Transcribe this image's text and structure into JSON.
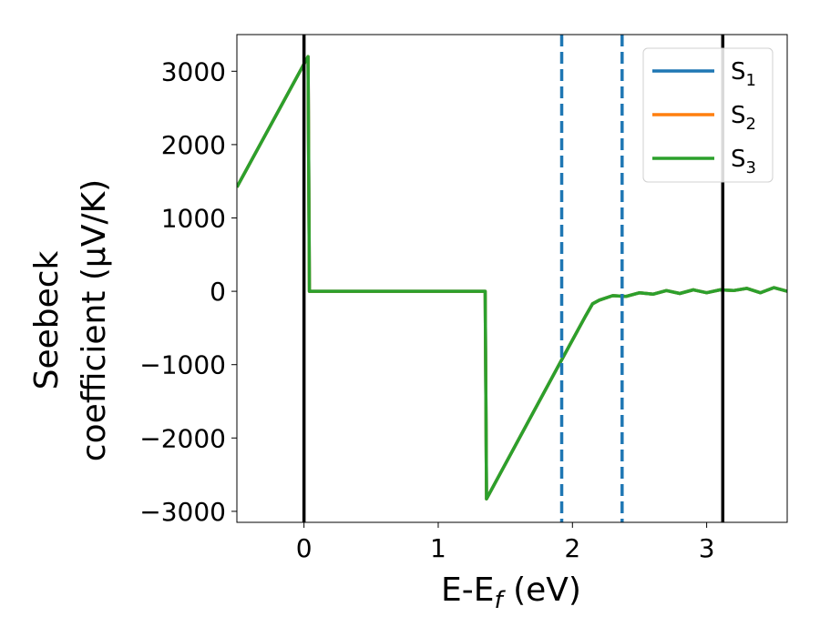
{
  "chart_data": {
    "type": "line",
    "xlabel": "E-E",
    "xlabel_sub": "f",
    "xlabel_unit": " (eV)",
    "ylabel_line1": "Seebeck",
    "ylabel_line2": "coefficient  (μV/K)",
    "xlim": [
      -0.5,
      3.6
    ],
    "ylim": [
      -3150,
      3500
    ],
    "xticks": [
      0,
      1,
      2,
      3
    ],
    "xtick_labels": [
      "0",
      "1",
      "2",
      "3"
    ],
    "yticks": [
      -3000,
      -2000,
      -1000,
      0,
      1000,
      2000,
      3000
    ],
    "ytick_labels": [
      "−3000",
      "−2000",
      "−1000",
      "0",
      "1000",
      "2000",
      "3000"
    ],
    "grid": false,
    "legend_position": "top-right",
    "series": [
      {
        "name": "S",
        "sub": "1",
        "color": "#1f77b4",
        "x": [
          -0.5,
          0.0,
          0.03,
          0.04,
          1.35,
          1.36,
          1.9,
          2.1,
          2.15,
          2.2,
          2.3,
          2.4,
          2.5,
          2.6,
          2.7,
          2.8,
          2.9,
          3.0,
          3.1,
          3.2,
          3.3,
          3.4,
          3.5,
          3.6
        ],
        "y": [
          1420,
          3100,
          3200,
          0,
          0,
          -2830,
          -1000,
          -330,
          -170,
          -120,
          -60,
          -70,
          -20,
          -40,
          10,
          -30,
          20,
          -20,
          20,
          10,
          40,
          -20,
          50,
          0
        ]
      },
      {
        "name": "S",
        "sub": "2",
        "color": "#ff7f0e",
        "x": [
          -0.5,
          0.0,
          0.03,
          0.04,
          1.35,
          1.36,
          1.9,
          2.1,
          2.15,
          2.2,
          2.3,
          2.4,
          2.5,
          2.6,
          2.7,
          2.8,
          2.9,
          3.0,
          3.1,
          3.2,
          3.3,
          3.4,
          3.5,
          3.6
        ],
        "y": [
          1420,
          3100,
          3200,
          0,
          0,
          -2830,
          -1000,
          -330,
          -170,
          -120,
          -60,
          -70,
          -20,
          -40,
          10,
          -30,
          20,
          -20,
          20,
          10,
          40,
          -20,
          50,
          0
        ]
      },
      {
        "name": "S",
        "sub": "3",
        "color": "#2ca02c",
        "x": [
          -0.5,
          0.0,
          0.03,
          0.04,
          1.35,
          1.36,
          1.9,
          2.1,
          2.15,
          2.2,
          2.3,
          2.4,
          2.5,
          2.6,
          2.7,
          2.8,
          2.9,
          3.0,
          3.1,
          3.2,
          3.3,
          3.4,
          3.5,
          3.6
        ],
        "y": [
          1420,
          3100,
          3200,
          0,
          0,
          -2830,
          -1000,
          -330,
          -170,
          -120,
          -60,
          -70,
          -20,
          -40,
          10,
          -30,
          20,
          -20,
          20,
          10,
          40,
          -20,
          50,
          0
        ]
      }
    ],
    "vlines_solid": [
      0.0,
      3.12
    ],
    "vlines_solid_color": "#000000",
    "vlines_dashed": [
      1.92,
      2.37
    ],
    "vlines_dashed_color": "#1f77b4"
  }
}
